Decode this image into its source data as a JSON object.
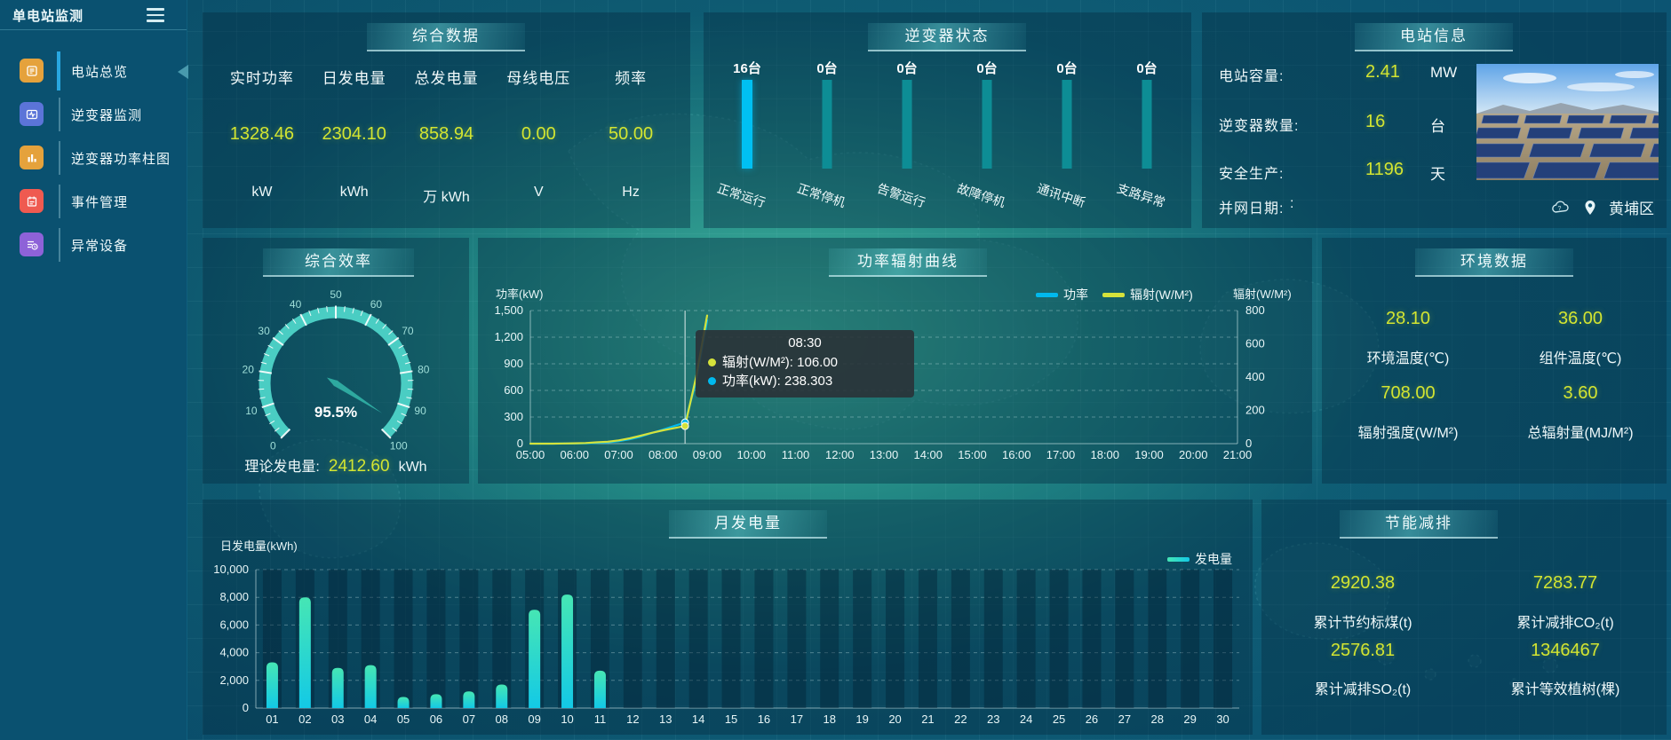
{
  "app": {
    "title": "单电站监测"
  },
  "sidebar": {
    "items": [
      {
        "label": "电站总览",
        "active": true
      },
      {
        "label": "逆变器监测",
        "active": false
      },
      {
        "label": "逆变器功率柱图",
        "active": false
      },
      {
        "label": "事件管理",
        "active": false
      },
      {
        "label": "异常设备",
        "active": false
      }
    ]
  },
  "panels": {
    "summary": {
      "title": "综合数据",
      "metrics": [
        {
          "name": "实时功率",
          "value": "1328.46",
          "unit": "kW"
        },
        {
          "name": "日发电量",
          "value": "2304.10",
          "unit": "kWh"
        },
        {
          "name": "总发电量",
          "value": "858.94",
          "unit": "万 kWh"
        },
        {
          "name": "母线电压",
          "value": "0.00",
          "unit": "V"
        },
        {
          "name": "频率",
          "value": "50.00",
          "unit": "Hz"
        }
      ]
    },
    "station": {
      "title": "电站信息",
      "rows": [
        {
          "label": "电站容量:",
          "value": "2.41",
          "unit": "MW"
        },
        {
          "label": "逆变器数量:",
          "value": "16",
          "unit": "台"
        },
        {
          "label": "安全生产:",
          "value": "1196",
          "unit": "天"
        },
        {
          "label": "并网日期:",
          "value": ":",
          "unit": ""
        }
      ],
      "location": "黄埔区"
    },
    "efficiency": {
      "theory_label": "理论发电量:",
      "theory_value": "2412.60",
      "theory_unit": "kWh"
    },
    "environment": {
      "title": "环境数据",
      "metrics": [
        {
          "value": "28.10",
          "label": "环境温度(℃)"
        },
        {
          "value": "36.00",
          "label": "组件温度(℃)"
        },
        {
          "value": "708.00",
          "label": "辐射强度(W/M²)"
        },
        {
          "value": "3.60",
          "label": "总辐射量(MJ/M²)"
        }
      ]
    },
    "eco": {
      "title": "节能减排",
      "metrics": [
        {
          "value": "2920.38",
          "label": "累计节约标煤(t)"
        },
        {
          "value": "7283.77",
          "label": "累计减排CO₂(t)"
        },
        {
          "value": "2576.81",
          "label": "累计减排SO₂(t)"
        },
        {
          "value": "1346467",
          "label": "累计等效植树(棵)"
        }
      ]
    }
  },
  "chart_data": [
    {
      "id": "inverter_status",
      "type": "bar",
      "title": "逆变器状态",
      "categories": [
        "正常运行",
        "正常停机",
        "告警运行",
        "故障停机",
        "通讯中断",
        "支路异常"
      ],
      "values": [
        16,
        0,
        0,
        0,
        0,
        0
      ],
      "unit": "台",
      "colors": {
        "active": "#00c0f2",
        "idle": "#0d8d95"
      }
    },
    {
      "id": "efficiency_gauge",
      "type": "gauge",
      "title": "综合效率",
      "value": 95.5,
      "min": 0,
      "max": 100,
      "label": "95.5%",
      "ring_color": "#4acdc3",
      "needle_color": "#2ea9a0"
    },
    {
      "id": "power_radiation",
      "type": "line",
      "title": "功率辐射曲线",
      "x_range": [
        5,
        21
      ],
      "x_tick_labels": [
        "05:00",
        "06:00",
        "07:00",
        "08:00",
        "09:00",
        "10:00",
        "11:00",
        "12:00",
        "13:00",
        "14:00",
        "15:00",
        "16:00",
        "17:00",
        "18:00",
        "19:00",
        "20:00",
        "21:00"
      ],
      "x_hours": [
        5,
        5.25,
        5.5,
        5.75,
        6,
        6.25,
        6.5,
        6.75,
        7,
        7.25,
        7.5,
        7.75,
        8,
        8.25,
        8.5,
        8.75,
        9
      ],
      "series": [
        {
          "name": "功率",
          "axis": "left",
          "color": "#00b9ee",
          "values": [
            0,
            0,
            0,
            1,
            2,
            4,
            8,
            15,
            28,
            50,
            80,
            120,
            158,
            198,
            238.3,
            700,
            1390
          ]
        },
        {
          "name": "辐射(W/M²)",
          "axis": "right",
          "color": "#d5e23b",
          "values": [
            0,
            0,
            0,
            1,
            2,
            4,
            8,
            12,
            20,
            32,
            48,
            65,
            80,
            93,
            106,
            400,
            770
          ]
        }
      ],
      "left_axis": {
        "name": "功率(kW)",
        "max": 1500,
        "tick_labels": [
          "0",
          "300",
          "600",
          "900",
          "1,200",
          "1,500"
        ]
      },
      "right_axis": {
        "name": "辐射(W/M²)",
        "max": 800,
        "tick_labels": [
          "0",
          "200",
          "400",
          "600",
          "800"
        ]
      },
      "tooltip": {
        "time": "08:30",
        "x_hour": 8.5,
        "lines": [
          {
            "text": "辐射(W/M²): 106.00",
            "color": "#d5e23b"
          },
          {
            "text": "功率(kW): 238.303",
            "color": "#00b9ee"
          }
        ]
      }
    },
    {
      "id": "monthly_energy",
      "type": "bar",
      "title": "月发电量",
      "ylabel": "日发电量(kWh)",
      "legend": "发电量",
      "categories": [
        "01",
        "02",
        "03",
        "04",
        "05",
        "06",
        "07",
        "08",
        "09",
        "10",
        "11",
        "12",
        "13",
        "14",
        "15",
        "16",
        "17",
        "18",
        "19",
        "20",
        "21",
        "22",
        "23",
        "24",
        "25",
        "26",
        "27",
        "28",
        "29",
        "30"
      ],
      "values": [
        3300,
        8000,
        2900,
        3100,
        800,
        1000,
        1200,
        1700,
        7100,
        8200,
        2700,
        0,
        0,
        0,
        0,
        0,
        0,
        0,
        0,
        0,
        0,
        0,
        0,
        0,
        0,
        0,
        0,
        0,
        0,
        0
      ],
      "ymax": 10000,
      "tick_labels": [
        "0",
        "2,000",
        "4,000",
        "6,000",
        "8,000",
        "10,000"
      ],
      "bar_colors": [
        "#46e6b4",
        "#13c9e6"
      ]
    }
  ]
}
